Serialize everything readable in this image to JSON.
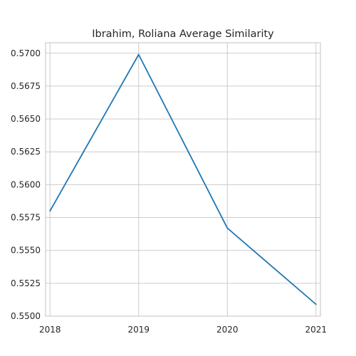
{
  "chart_data": {
    "type": "line",
    "title": "Ibrahim, Roliana Average Similarity",
    "xlabel": "",
    "ylabel": "",
    "x": [
      2018,
      2019,
      2020,
      2021
    ],
    "x_tick_labels": [
      "2018",
      "2019",
      "2020",
      "2021"
    ],
    "xlim": [
      2017.95,
      2021.05
    ],
    "ylim": [
      0.55,
      0.5708
    ],
    "y_ticks": [
      0.55,
      0.5525,
      0.555,
      0.5575,
      0.56,
      0.5625,
      0.565,
      0.5675,
      0.57
    ],
    "y_tick_labels": [
      "0.5500",
      "0.5525",
      "0.5550",
      "0.5575",
      "0.5600",
      "0.5625",
      "0.5650",
      "0.5675",
      "0.5700"
    ],
    "series": [
      {
        "values": [
          0.558,
          0.5699,
          0.5567,
          0.5509
        ],
        "color": "#1f77b4"
      }
    ],
    "grid": true,
    "legend": false
  }
}
